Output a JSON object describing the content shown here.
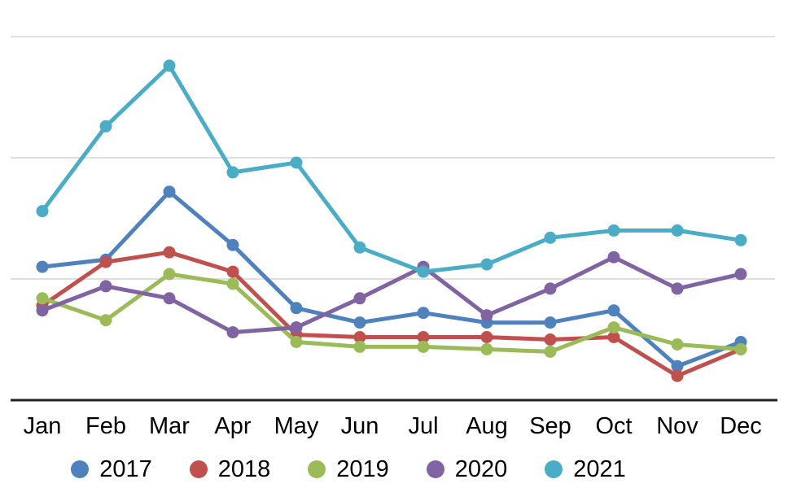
{
  "chart_data": {
    "type": "line",
    "title": "",
    "xlabel": "",
    "ylabel": "",
    "categories": [
      "Jan",
      "Feb",
      "Mar",
      "Apr",
      "May",
      "Jun",
      "Jul",
      "Aug",
      "Sep",
      "Oct",
      "Nov",
      "Dec"
    ],
    "series": [
      {
        "name": "2017",
        "color": "#4F81BD",
        "values": [
          55,
          58,
          86,
          64,
          38,
          32,
          36,
          32,
          32,
          37,
          14,
          24
        ]
      },
      {
        "name": "2018",
        "color": "#C0504D",
        "values": [
          39,
          57,
          61,
          53,
          27,
          26,
          26,
          26,
          25,
          26,
          10,
          21
        ]
      },
      {
        "name": "2019",
        "color": "#9BBB59",
        "values": [
          42,
          33,
          52,
          48,
          24,
          22,
          22,
          21,
          20,
          30,
          23,
          21
        ]
      },
      {
        "name": "2020",
        "color": "#8064A2",
        "values": [
          37,
          47,
          42,
          28,
          30,
          42,
          55,
          35,
          46,
          59,
          46,
          52
        ]
      },
      {
        "name": "2021",
        "color": "#4BACC6",
        "values": [
          78,
          113,
          138,
          94,
          98,
          63,
          53,
          56,
          67,
          70,
          70,
          66
        ]
      }
    ],
    "ylim": [
      0,
      165
    ],
    "y_axis": {
      "labels_visible": false,
      "gridline_values": [
        50,
        100,
        150
      ]
    },
    "grid_on": true,
    "legend_position": "bottom",
    "legend_labels": [
      "2017",
      "2018",
      "2019",
      "2020",
      "2021"
    ]
  },
  "style": {
    "background": "#ffffff",
    "grid_color": "#d5d5d5",
    "axis_line_color": "#212121",
    "label_color": "#000000"
  }
}
